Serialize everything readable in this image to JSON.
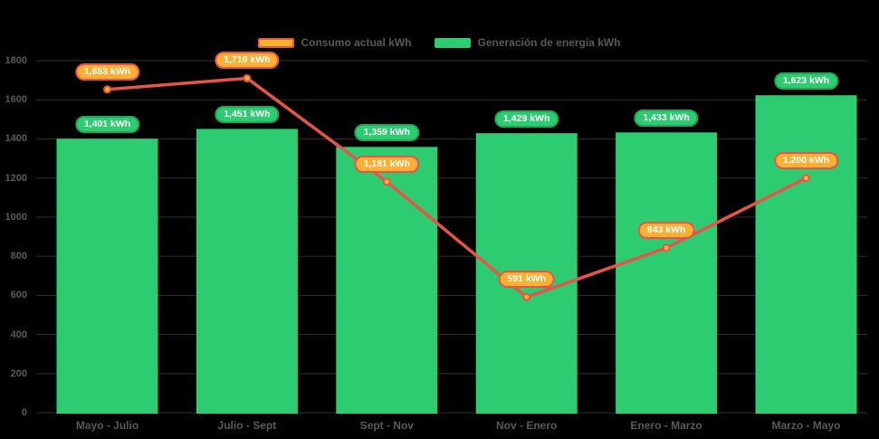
{
  "background_color": "#000000",
  "colors": {
    "bar_green": "#2ecc71",
    "bar_label_border_green": "#22a559",
    "line_red": "#e8544a",
    "marker_orange": "#fcb32c",
    "line_label_orange": "#fbb034",
    "axis_text_gray": "#58595b",
    "gridline_gray": "#2f2f2f",
    "label_text_white": "#ffffff"
  },
  "legend": {
    "items": [
      {
        "label": "Consumo actual kWh",
        "swatch_color": "#fcb32c",
        "swatch_border": "#e8544a"
      },
      {
        "label": "Generación de energía kWh",
        "swatch_color": "#2ecc71",
        "swatch_border": "#2ecc71"
      }
    ]
  },
  "chart_data": {
    "type": "combo",
    "title": "",
    "xlabel": "",
    "ylabel": "",
    "categories": [
      "Mayo - Julio",
      "Julio - Sept",
      "Sept - Nov",
      "Nov - Enero",
      "Enero - Marzo",
      "Marzo - Mayo"
    ],
    "series": [
      {
        "name": "Generación de energía kWh",
        "type": "bar",
        "color": "#2ecc71",
        "values": [
          1401,
          1451,
          1359,
          1429,
          1433,
          1623
        ],
        "labels": [
          "1,401 kWh",
          "1,451 kWh",
          "1,359 kWh",
          "1,429 kWh",
          "1,433 kWh",
          "1,623 kWh"
        ]
      },
      {
        "name": "Consumo actual kWh",
        "type": "line",
        "color": "#e8544a",
        "values": [
          1653,
          1710,
          1181,
          591,
          843,
          1200
        ],
        "labels": [
          "1,653 kWh",
          "1,710 kWh",
          "1,181 kWh",
          "591 kWh",
          "843 kWh",
          "1,200 kWh"
        ]
      }
    ],
    "ylim": [
      0,
      1800
    ],
    "y_tick_step": 200,
    "y_tick_labels": [
      "0",
      "200",
      "400",
      "600",
      "800",
      "1000",
      "1200",
      "1400",
      "1600",
      "1800"
    ],
    "grid": true,
    "legend_position": "top"
  }
}
